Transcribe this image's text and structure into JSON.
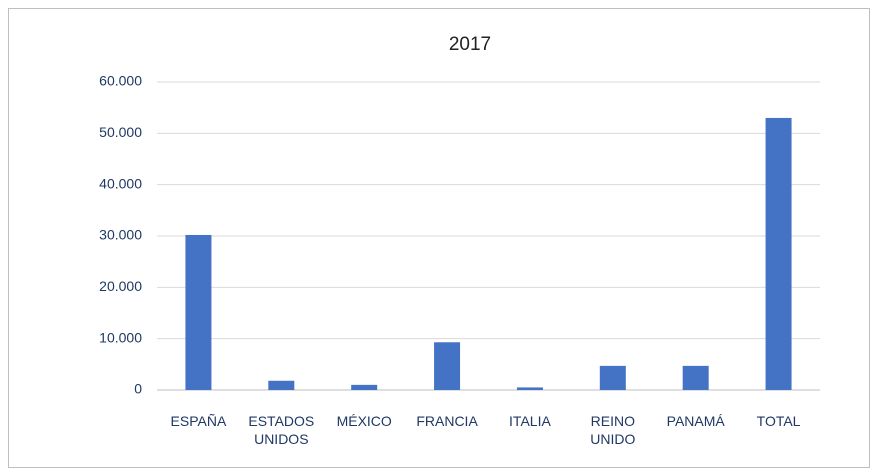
{
  "chart_data": {
    "type": "bar",
    "title": "2017",
    "categories": [
      "ESPAÑA",
      "ESTADOS UNIDOS",
      "MÉXICO",
      "FRANCIA",
      "ITALIA",
      "REINO UNIDO",
      "PANAMÁ",
      "TOTAL"
    ],
    "values": [
      30200,
      1800,
      1000,
      9300,
      500,
      4700,
      4700,
      53000
    ],
    "color": "#4472c4",
    "ylim": [
      0,
      60000
    ],
    "yticks": [
      0,
      {
        "value": 10000,
        "label": "10.000"
      },
      {
        "value": 20000,
        "label": "20.000"
      },
      {
        "value": 30000,
        "label": "30.000"
      },
      {
        "value": 40000,
        "label": "40.000"
      },
      {
        "value": 50000,
        "label": "50.000"
      },
      {
        "value": 60000,
        "label": "60.000"
      }
    ],
    "grid": true
  }
}
